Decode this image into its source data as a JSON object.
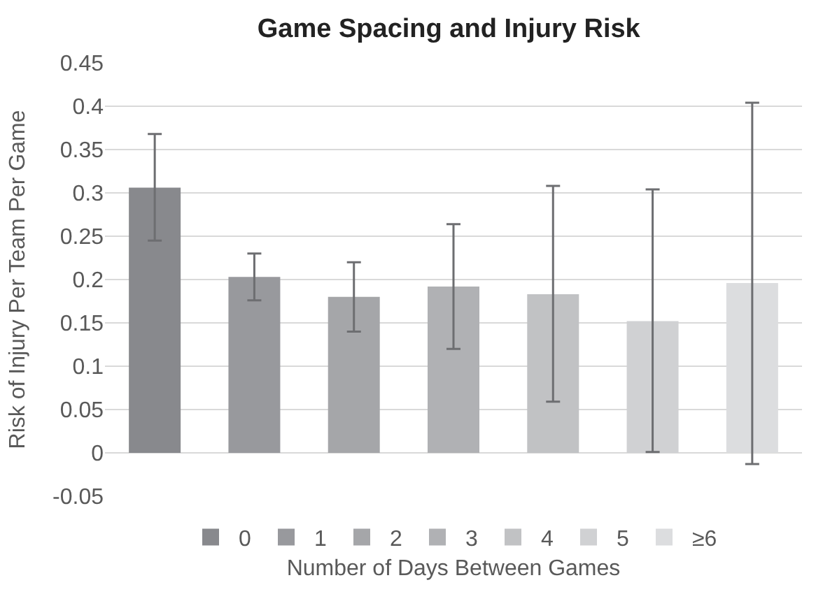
{
  "chart_data": {
    "type": "bar",
    "title": "Game Spacing and Injury Risk",
    "xlabel": "Number of Days Between Games",
    "ylabel": "Risk of Injury Per Team Per Game",
    "categories": [
      null
    ],
    "series": [
      {
        "name": "0",
        "color": "#88898d",
        "values": [
          0.306
        ],
        "errors": [
          [
            0.245,
            0.368
          ]
        ]
      },
      {
        "name": "1",
        "color": "#98999d",
        "values": [
          0.203
        ],
        "errors": [
          [
            0.176,
            0.23
          ]
        ]
      },
      {
        "name": "2",
        "color": "#a5a6a9",
        "values": [
          0.18
        ],
        "errors": [
          [
            0.14,
            0.22
          ]
        ]
      },
      {
        "name": "3",
        "color": "#b0b1b4",
        "values": [
          0.192
        ],
        "errors": [
          [
            0.12,
            0.264
          ]
        ]
      },
      {
        "name": "4",
        "color": "#c1c2c4",
        "values": [
          0.183
        ],
        "errors": [
          [
            0.059,
            0.308
          ]
        ]
      },
      {
        "name": "5",
        "color": "#d0d1d3",
        "values": [
          0.152
        ],
        "errors": [
          [
            0.001,
            0.304
          ]
        ]
      },
      {
        "name": "≥6",
        "color": "#dcdddf",
        "values": [
          0.196
        ],
        "errors": [
          [
            -0.013,
            0.404
          ]
        ]
      }
    ],
    "ylim": [
      -0.05,
      0.45
    ],
    "yticks": [
      -0.05,
      0,
      0.05,
      0.1,
      0.15,
      0.2,
      0.25,
      0.3,
      0.35,
      0.4,
      0.45
    ],
    "grid": "y",
    "legend": "bottom"
  }
}
